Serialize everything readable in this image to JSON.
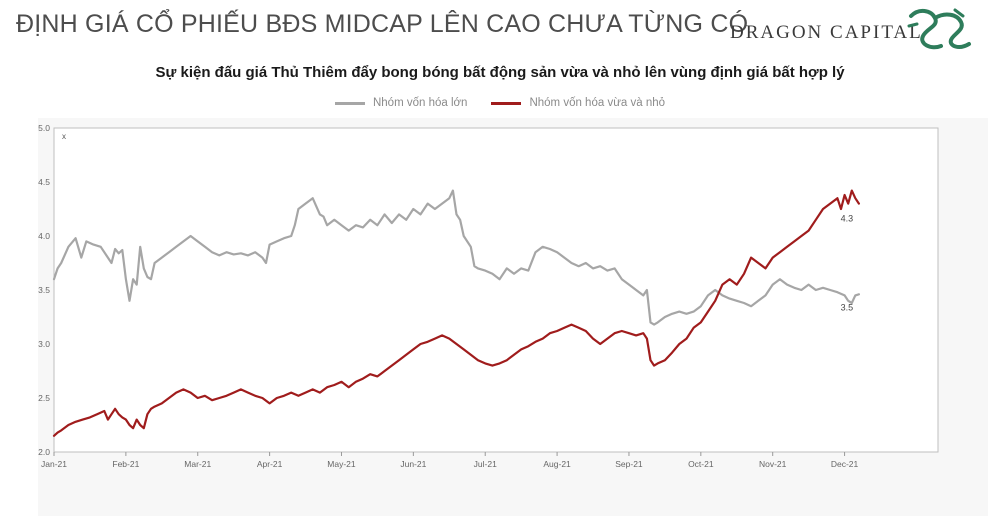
{
  "header": {
    "title": "ĐỊNH GIÁ CỔ PHIẾU BĐS MIDCAP LÊN CAO CHƯA TỪNG CÓ",
    "brand": "DRAGON CAPITAL",
    "brand_color": "#2e7d5b"
  },
  "chart_data": {
    "type": "line",
    "title": "Sự kiện đấu giá Thủ Thiêm đẩy bong bóng bất động sản vừa và nhỏ lên vùng định giá bất hợp lý",
    "ylabel": "x",
    "ylim": [
      2.0,
      5.0
    ],
    "yticks": [
      "5.0",
      "4.5",
      "4.0",
      "3.5",
      "3.0",
      "2.5",
      "2.0"
    ],
    "xlim": [
      0,
      12.3
    ],
    "xticks": [
      "Jan-21",
      "Feb-21",
      "Mar-21",
      "Apr-21",
      "May-21",
      "Jun-21",
      "Jul-21",
      "Aug-21",
      "Sep-21",
      "Oct-21",
      "Nov-21",
      "Dec-21"
    ],
    "grid": false,
    "legend": "top-center",
    "series": [
      {
        "name": "Nhóm vốn hóa lớn",
        "color": "#a6a6a6",
        "end_label": "3.5",
        "points": [
          [
            0,
            3.6
          ],
          [
            0.05,
            3.7
          ],
          [
            0.1,
            3.75
          ],
          [
            0.2,
            3.9
          ],
          [
            0.3,
            3.98
          ],
          [
            0.38,
            3.8
          ],
          [
            0.45,
            3.95
          ],
          [
            0.55,
            3.92
          ],
          [
            0.65,
            3.9
          ],
          [
            0.75,
            3.8
          ],
          [
            0.8,
            3.75
          ],
          [
            0.85,
            3.88
          ],
          [
            0.9,
            3.84
          ],
          [
            0.95,
            3.87
          ],
          [
            1.0,
            3.6
          ],
          [
            1.05,
            3.4
          ],
          [
            1.1,
            3.6
          ],
          [
            1.15,
            3.55
          ],
          [
            1.2,
            3.9
          ],
          [
            1.25,
            3.7
          ],
          [
            1.3,
            3.62
          ],
          [
            1.35,
            3.6
          ],
          [
            1.4,
            3.75
          ],
          [
            1.5,
            3.8
          ],
          [
            1.6,
            3.85
          ],
          [
            1.7,
            3.9
          ],
          [
            1.8,
            3.95
          ],
          [
            1.9,
            4.0
          ],
          [
            2.0,
            3.95
          ],
          [
            2.1,
            3.9
          ],
          [
            2.2,
            3.85
          ],
          [
            2.3,
            3.82
          ],
          [
            2.4,
            3.85
          ],
          [
            2.5,
            3.83
          ],
          [
            2.6,
            3.84
          ],
          [
            2.7,
            3.82
          ],
          [
            2.8,
            3.85
          ],
          [
            2.9,
            3.8
          ],
          [
            2.95,
            3.75
          ],
          [
            3.0,
            3.92
          ],
          [
            3.1,
            3.95
          ],
          [
            3.2,
            3.98
          ],
          [
            3.3,
            4.0
          ],
          [
            3.35,
            4.1
          ],
          [
            3.4,
            4.25
          ],
          [
            3.5,
            4.3
          ],
          [
            3.6,
            4.35
          ],
          [
            3.7,
            4.2
          ],
          [
            3.75,
            4.18
          ],
          [
            3.8,
            4.1
          ],
          [
            3.9,
            4.15
          ],
          [
            4.0,
            4.1
          ],
          [
            4.1,
            4.05
          ],
          [
            4.2,
            4.1
          ],
          [
            4.3,
            4.08
          ],
          [
            4.4,
            4.15
          ],
          [
            4.5,
            4.1
          ],
          [
            4.6,
            4.2
          ],
          [
            4.7,
            4.12
          ],
          [
            4.8,
            4.2
          ],
          [
            4.9,
            4.15
          ],
          [
            5.0,
            4.25
          ],
          [
            5.1,
            4.2
          ],
          [
            5.2,
            4.3
          ],
          [
            5.3,
            4.25
          ],
          [
            5.4,
            4.3
          ],
          [
            5.5,
            4.35
          ],
          [
            5.55,
            4.42
          ],
          [
            5.6,
            4.2
          ],
          [
            5.65,
            4.15
          ],
          [
            5.7,
            4.0
          ],
          [
            5.8,
            3.9
          ],
          [
            5.85,
            3.72
          ],
          [
            5.9,
            3.7
          ],
          [
            6.0,
            3.68
          ],
          [
            6.1,
            3.65
          ],
          [
            6.2,
            3.6
          ],
          [
            6.3,
            3.7
          ],
          [
            6.4,
            3.65
          ],
          [
            6.5,
            3.7
          ],
          [
            6.6,
            3.68
          ],
          [
            6.7,
            3.85
          ],
          [
            6.8,
            3.9
          ],
          [
            6.9,
            3.88
          ],
          [
            7.0,
            3.85
          ],
          [
            7.1,
            3.8
          ],
          [
            7.2,
            3.75
          ],
          [
            7.3,
            3.72
          ],
          [
            7.4,
            3.75
          ],
          [
            7.5,
            3.7
          ],
          [
            7.6,
            3.72
          ],
          [
            7.7,
            3.68
          ],
          [
            7.8,
            3.7
          ],
          [
            7.9,
            3.6
          ],
          [
            8.0,
            3.55
          ],
          [
            8.1,
            3.5
          ],
          [
            8.2,
            3.45
          ],
          [
            8.25,
            3.5
          ],
          [
            8.3,
            3.2
          ],
          [
            8.35,
            3.18
          ],
          [
            8.4,
            3.2
          ],
          [
            8.5,
            3.25
          ],
          [
            8.6,
            3.28
          ],
          [
            8.7,
            3.3
          ],
          [
            8.8,
            3.28
          ],
          [
            8.9,
            3.3
          ],
          [
            9.0,
            3.35
          ],
          [
            9.1,
            3.45
          ],
          [
            9.2,
            3.5
          ],
          [
            9.3,
            3.45
          ],
          [
            9.4,
            3.42
          ],
          [
            9.5,
            3.4
          ],
          [
            9.6,
            3.38
          ],
          [
            9.7,
            3.35
          ],
          [
            9.8,
            3.4
          ],
          [
            9.9,
            3.45
          ],
          [
            10.0,
            3.55
          ],
          [
            10.1,
            3.6
          ],
          [
            10.2,
            3.55
          ],
          [
            10.3,
            3.52
          ],
          [
            10.4,
            3.5
          ],
          [
            10.5,
            3.55
          ],
          [
            10.6,
            3.5
          ],
          [
            10.7,
            3.52
          ],
          [
            10.8,
            3.5
          ],
          [
            10.9,
            3.48
          ],
          [
            11.0,
            3.45
          ],
          [
            11.05,
            3.4
          ],
          [
            11.1,
            3.38
          ],
          [
            11.15,
            3.45
          ],
          [
            11.2,
            3.46
          ]
        ]
      },
      {
        "name": "Nhóm vốn hóa vừa và nhỏ",
        "color": "#a01c1c",
        "end_label": "4.3",
        "points": [
          [
            0,
            2.15
          ],
          [
            0.05,
            2.18
          ],
          [
            0.1,
            2.2
          ],
          [
            0.2,
            2.25
          ],
          [
            0.3,
            2.28
          ],
          [
            0.4,
            2.3
          ],
          [
            0.5,
            2.32
          ],
          [
            0.6,
            2.35
          ],
          [
            0.7,
            2.38
          ],
          [
            0.75,
            2.3
          ],
          [
            0.8,
            2.35
          ],
          [
            0.85,
            2.4
          ],
          [
            0.9,
            2.35
          ],
          [
            0.95,
            2.32
          ],
          [
            1.0,
            2.3
          ],
          [
            1.05,
            2.25
          ],
          [
            1.1,
            2.22
          ],
          [
            1.15,
            2.3
          ],
          [
            1.2,
            2.25
          ],
          [
            1.25,
            2.22
          ],
          [
            1.3,
            2.35
          ],
          [
            1.35,
            2.4
          ],
          [
            1.4,
            2.42
          ],
          [
            1.5,
            2.45
          ],
          [
            1.6,
            2.5
          ],
          [
            1.7,
            2.55
          ],
          [
            1.8,
            2.58
          ],
          [
            1.9,
            2.55
          ],
          [
            2.0,
            2.5
          ],
          [
            2.1,
            2.52
          ],
          [
            2.2,
            2.48
          ],
          [
            2.3,
            2.5
          ],
          [
            2.4,
            2.52
          ],
          [
            2.5,
            2.55
          ],
          [
            2.6,
            2.58
          ],
          [
            2.7,
            2.55
          ],
          [
            2.8,
            2.52
          ],
          [
            2.9,
            2.5
          ],
          [
            3.0,
            2.45
          ],
          [
            3.1,
            2.5
          ],
          [
            3.2,
            2.52
          ],
          [
            3.3,
            2.55
          ],
          [
            3.4,
            2.52
          ],
          [
            3.5,
            2.55
          ],
          [
            3.6,
            2.58
          ],
          [
            3.7,
            2.55
          ],
          [
            3.8,
            2.6
          ],
          [
            3.9,
            2.62
          ],
          [
            4.0,
            2.65
          ],
          [
            4.1,
            2.6
          ],
          [
            4.2,
            2.65
          ],
          [
            4.3,
            2.68
          ],
          [
            4.4,
            2.72
          ],
          [
            4.5,
            2.7
          ],
          [
            4.6,
            2.75
          ],
          [
            4.7,
            2.8
          ],
          [
            4.8,
            2.85
          ],
          [
            4.9,
            2.9
          ],
          [
            5.0,
            2.95
          ],
          [
            5.1,
            3.0
          ],
          [
            5.2,
            3.02
          ],
          [
            5.3,
            3.05
          ],
          [
            5.4,
            3.08
          ],
          [
            5.5,
            3.05
          ],
          [
            5.6,
            3.0
          ],
          [
            5.7,
            2.95
          ],
          [
            5.8,
            2.9
          ],
          [
            5.9,
            2.85
          ],
          [
            6.0,
            2.82
          ],
          [
            6.1,
            2.8
          ],
          [
            6.2,
            2.82
          ],
          [
            6.3,
            2.85
          ],
          [
            6.4,
            2.9
          ],
          [
            6.5,
            2.95
          ],
          [
            6.6,
            2.98
          ],
          [
            6.7,
            3.02
          ],
          [
            6.8,
            3.05
          ],
          [
            6.9,
            3.1
          ],
          [
            7.0,
            3.12
          ],
          [
            7.1,
            3.15
          ],
          [
            7.2,
            3.18
          ],
          [
            7.3,
            3.15
          ],
          [
            7.4,
            3.12
          ],
          [
            7.5,
            3.05
          ],
          [
            7.6,
            3.0
          ],
          [
            7.7,
            3.05
          ],
          [
            7.8,
            3.1
          ],
          [
            7.9,
            3.12
          ],
          [
            8.0,
            3.1
          ],
          [
            8.1,
            3.08
          ],
          [
            8.2,
            3.1
          ],
          [
            8.25,
            3.05
          ],
          [
            8.3,
            2.85
          ],
          [
            8.35,
            2.8
          ],
          [
            8.4,
            2.82
          ],
          [
            8.5,
            2.85
          ],
          [
            8.6,
            2.92
          ],
          [
            8.7,
            3.0
          ],
          [
            8.8,
            3.05
          ],
          [
            8.9,
            3.15
          ],
          [
            9.0,
            3.2
          ],
          [
            9.1,
            3.3
          ],
          [
            9.2,
            3.4
          ],
          [
            9.3,
            3.55
          ],
          [
            9.4,
            3.6
          ],
          [
            9.5,
            3.55
          ],
          [
            9.6,
            3.65
          ],
          [
            9.7,
            3.8
          ],
          [
            9.8,
            3.75
          ],
          [
            9.9,
            3.7
          ],
          [
            10.0,
            3.8
          ],
          [
            10.1,
            3.85
          ],
          [
            10.2,
            3.9
          ],
          [
            10.3,
            3.95
          ],
          [
            10.4,
            4.0
          ],
          [
            10.5,
            4.05
          ],
          [
            10.6,
            4.15
          ],
          [
            10.7,
            4.25
          ],
          [
            10.8,
            4.3
          ],
          [
            10.9,
            4.35
          ],
          [
            10.95,
            4.25
          ],
          [
            11.0,
            4.38
          ],
          [
            11.05,
            4.3
          ],
          [
            11.1,
            4.42
          ],
          [
            11.15,
            4.35
          ],
          [
            11.2,
            4.3
          ]
        ]
      }
    ]
  }
}
